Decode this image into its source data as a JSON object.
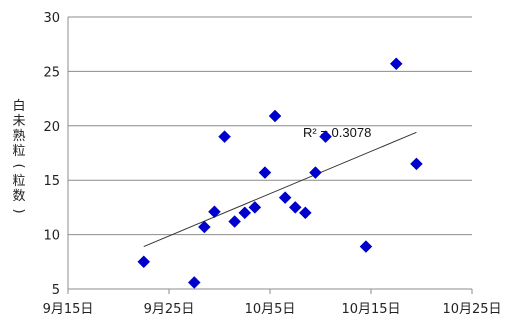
{
  "chart_data": {
    "type": "scatter",
    "title": "",
    "xlabel": "",
    "ylabel": "白未熟粒(粒数)",
    "xlim": [
      0,
      40
    ],
    "ylim": [
      5,
      30
    ],
    "x_ticks": [
      {
        "value": 0,
        "label": "9月15日"
      },
      {
        "value": 10,
        "label": "9月25日"
      },
      {
        "value": 20,
        "label": "10月5日"
      },
      {
        "value": 30,
        "label": "10月15日"
      },
      {
        "value": 40,
        "label": "10月25日"
      }
    ],
    "y_ticks": [
      5,
      10,
      15,
      20,
      25,
      30
    ],
    "grid": "horizontal",
    "marker_color": "#0000cc",
    "series": [
      {
        "points": [
          {
            "x": 7.5,
            "y": 7.5
          },
          {
            "x": 12.5,
            "y": 5.6
          },
          {
            "x": 13.5,
            "y": 10.7
          },
          {
            "x": 14.5,
            "y": 12.1
          },
          {
            "x": 15.5,
            "y": 19.0
          },
          {
            "x": 16.5,
            "y": 11.2
          },
          {
            "x": 17.5,
            "y": 12.0
          },
          {
            "x": 18.5,
            "y": 12.5
          },
          {
            "x": 19.5,
            "y": 15.7
          },
          {
            "x": 20.5,
            "y": 20.9
          },
          {
            "x": 21.5,
            "y": 13.4
          },
          {
            "x": 22.5,
            "y": 12.5
          },
          {
            "x": 23.5,
            "y": 12.0
          },
          {
            "x": 24.5,
            "y": 15.7
          },
          {
            "x": 25.5,
            "y": 19.0
          },
          {
            "x": 29.5,
            "y": 8.9
          },
          {
            "x": 32.5,
            "y": 25.7
          },
          {
            "x": 34.5,
            "y": 16.5
          }
        ]
      }
    ],
    "trendline": {
      "start": {
        "x": 7.5,
        "y": 8.9
      },
      "end": {
        "x": 34.5,
        "y": 19.4
      },
      "label": "R² = 0.3078"
    }
  }
}
